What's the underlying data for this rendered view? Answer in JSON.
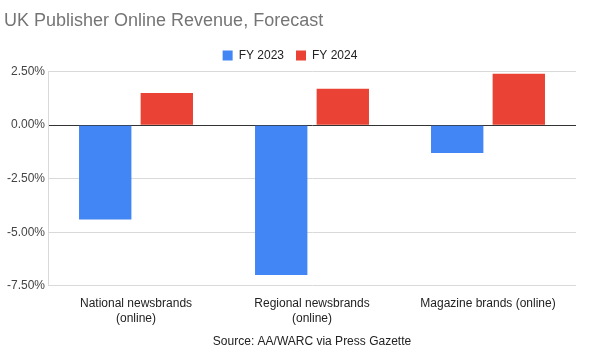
{
  "chart_data": {
    "type": "bar",
    "title": "UK Publisher Online Revenue, Forecast",
    "x_label": "Source: AA/WARC via Press Gazette",
    "categories": [
      "National newsbrands (online)",
      "Regional newsbrands (online)",
      "Magazine brands (online)"
    ],
    "series": [
      {
        "name": "FY 2023",
        "color": "#4285f4",
        "values": [
          -4.4,
          -7.0,
          -1.3
        ]
      },
      {
        "name": "FY 2024",
        "color": "#ea4335",
        "values": [
          1.5,
          1.7,
          2.4
        ]
      }
    ],
    "ylim": [
      -7.5,
      2.5
    ],
    "yticks": [
      {
        "value": -7.5,
        "label": "-7.50%"
      },
      {
        "value": -5,
        "label": "-5.00%"
      },
      {
        "value": -2.5,
        "label": "-2.50%"
      },
      {
        "value": 0,
        "label": "0.00%"
      },
      {
        "value": 2.5,
        "label": "2.50%"
      }
    ],
    "grid": true,
    "legend": "top"
  }
}
